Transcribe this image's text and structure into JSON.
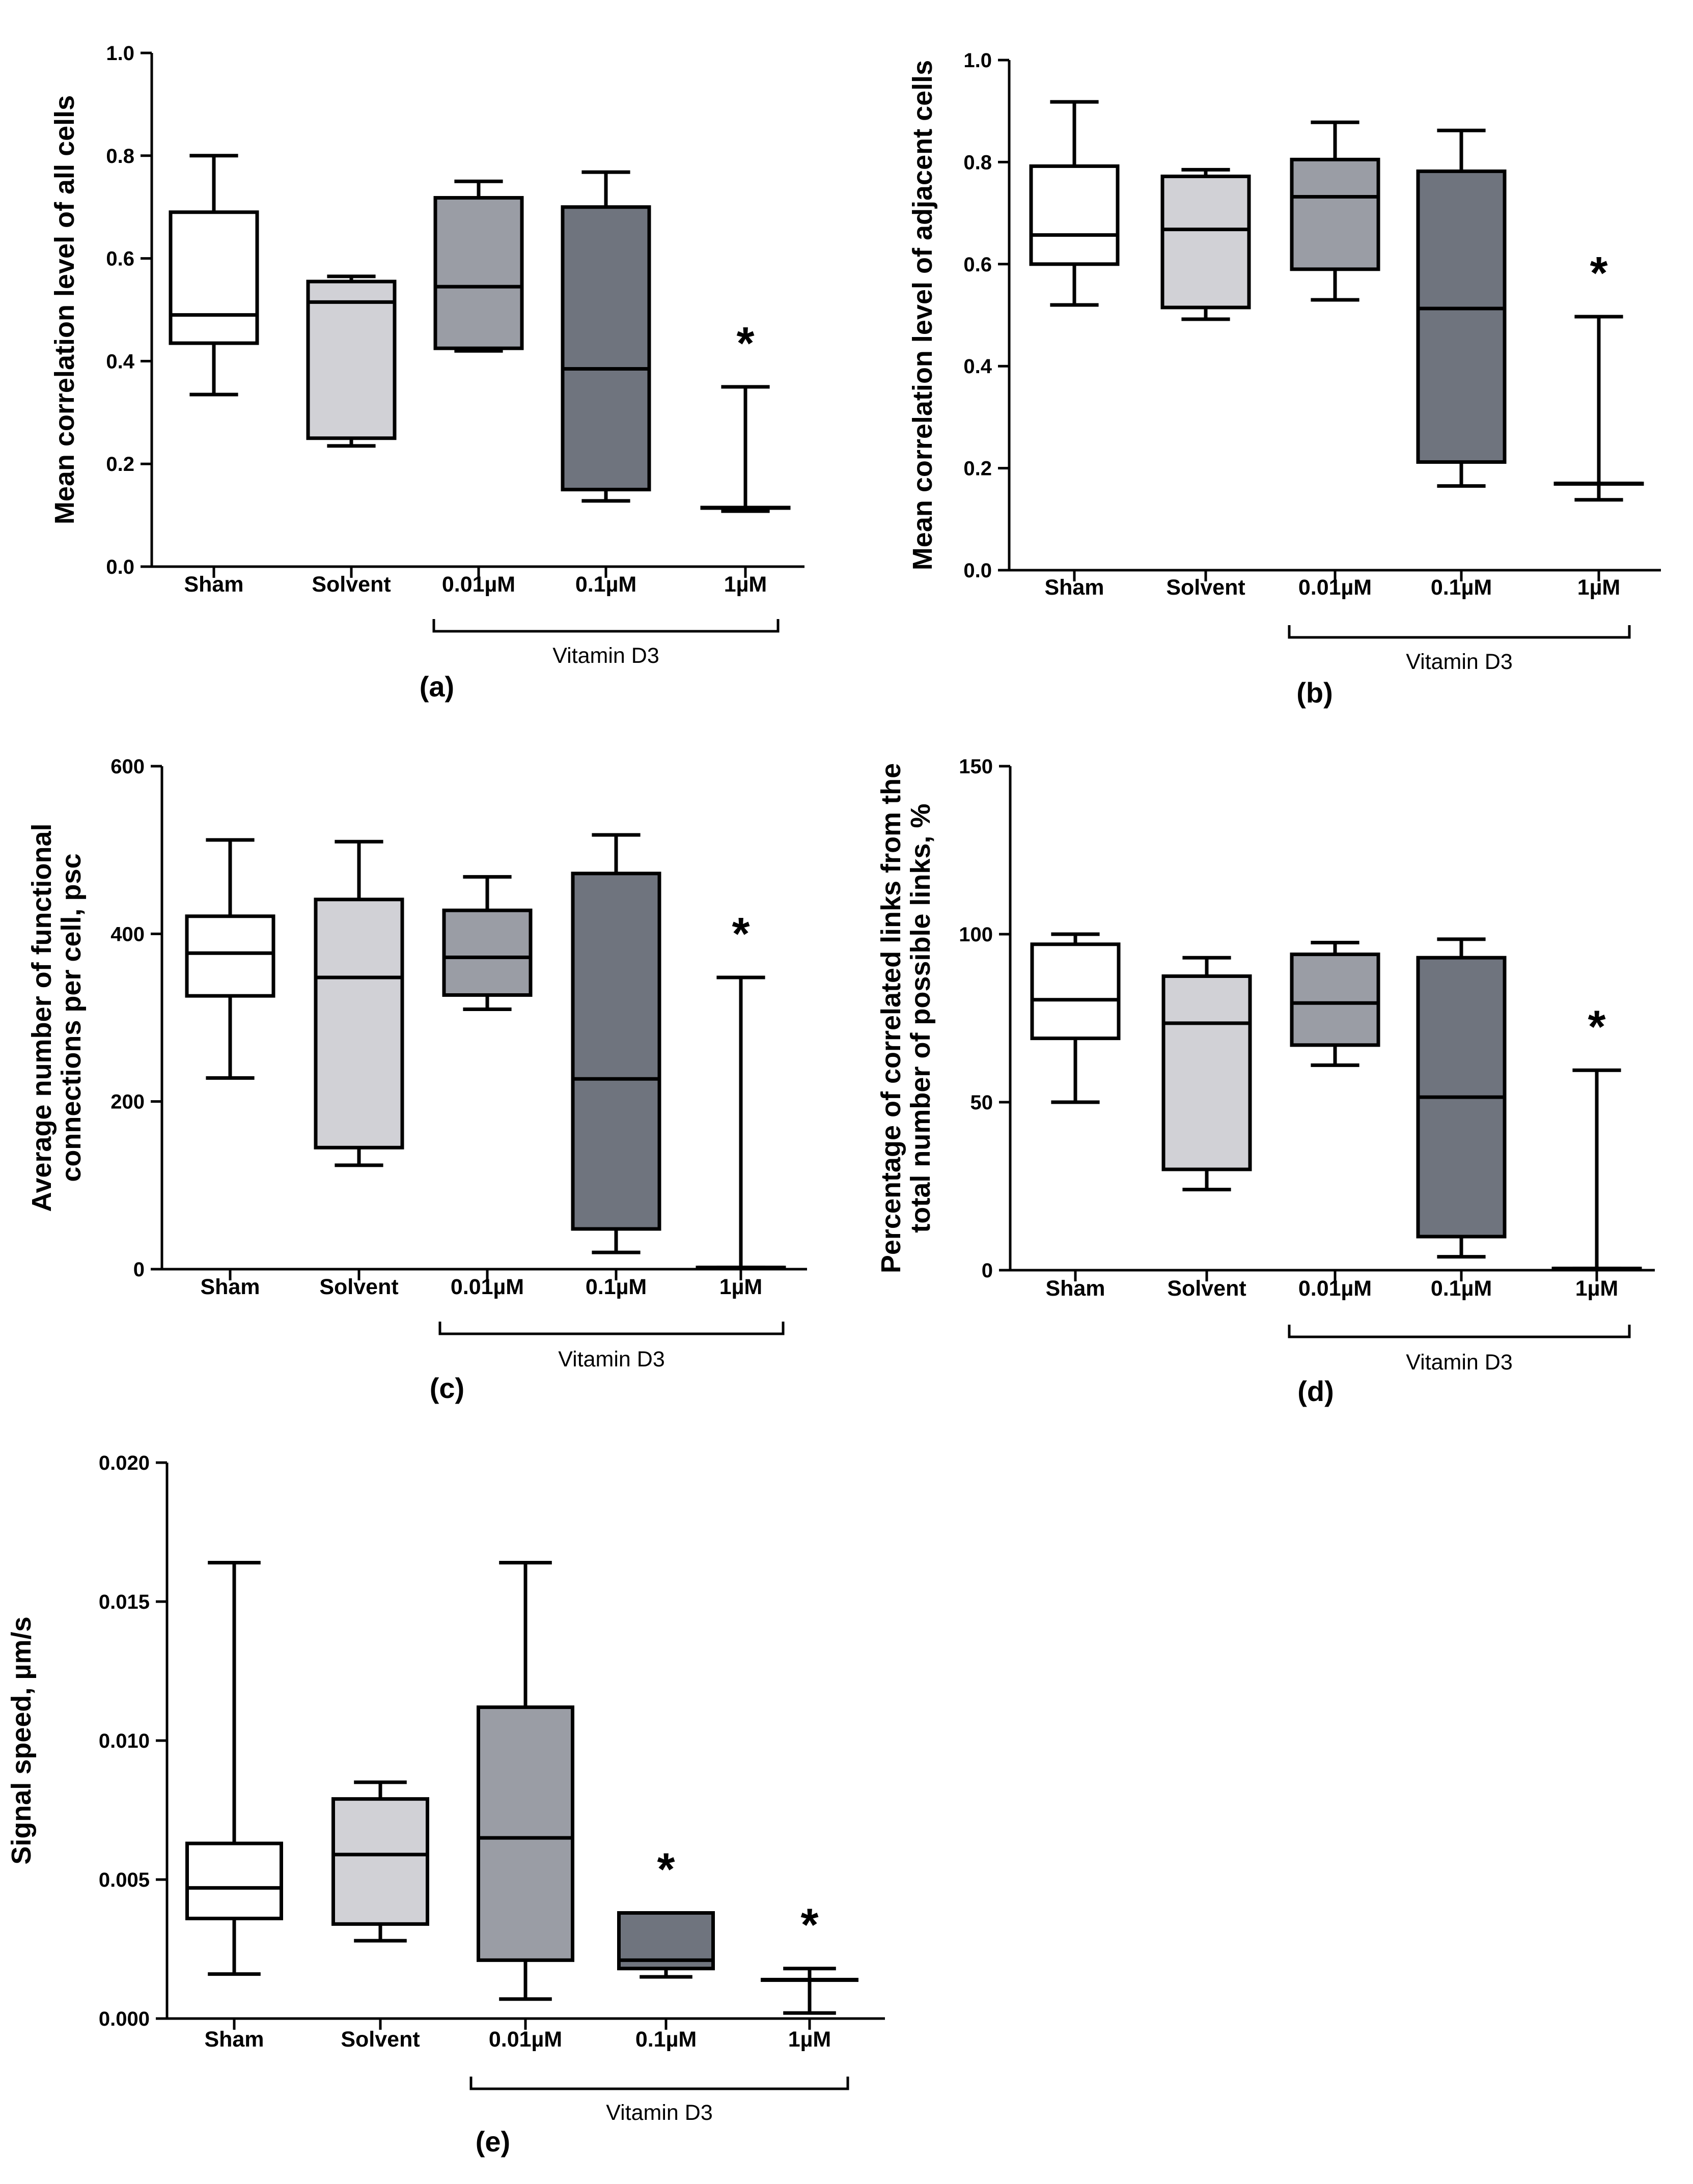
{
  "figure": {
    "bracket_label": "Vitamin D3",
    "significance_marker": "*",
    "group_fills": {
      "Sham": "#ffffff",
      "Solvent": "#d1d1d6",
      "0.01µM": "#9a9da5",
      "0.1µM": "#6f747e",
      "1µM": "#6f747e"
    }
  },
  "chart_data": [
    {
      "type": "box",
      "panel_label": "(a)",
      "ylabel": "Mean correlation level of all cells",
      "ylim": [
        0,
        1.0
      ],
      "yticks": [
        "0.0",
        "0.2",
        "0.4",
        "0.6",
        "0.8",
        "1.0"
      ],
      "categories": [
        "Sham",
        "Solvent",
        "0.01µM",
        "0.1µM",
        "1µM"
      ],
      "boxes": [
        {
          "min": 0.335,
          "q1": 0.435,
          "median": 0.49,
          "q3": 0.69,
          "max": 0.8
        },
        {
          "min": 0.235,
          "q1": 0.25,
          "median": 0.515,
          "q3": 0.555,
          "max": 0.565
        },
        {
          "min": 0.42,
          "q1": 0.425,
          "median": 0.545,
          "q3": 0.718,
          "max": 0.75
        },
        {
          "min": 0.128,
          "q1": 0.15,
          "median": 0.385,
          "q3": 0.7,
          "max": 0.768
        },
        {
          "min": 0.108,
          "q1": 0.115,
          "median": 0.115,
          "q3": 0.115,
          "max": 0.35
        }
      ],
      "significant": [
        false,
        false,
        false,
        false,
        true
      ],
      "bracket_groups": [
        "0.01µM",
        "1µM"
      ]
    },
    {
      "type": "box",
      "panel_label": "(b)",
      "ylabel": "Mean correlation level of adjacent cells",
      "ylim": [
        0,
        1.0
      ],
      "yticks": [
        "0.0",
        "0.2",
        "0.4",
        "0.6",
        "0.8",
        "1.0"
      ],
      "categories": [
        "Sham",
        "Solvent",
        "0.01µM",
        "0.1µM",
        "1µM"
      ],
      "boxes": [
        {
          "min": 0.52,
          "q1": 0.6,
          "median": 0.657,
          "q3": 0.792,
          "max": 0.918
        },
        {
          "min": 0.492,
          "q1": 0.515,
          "median": 0.668,
          "q3": 0.772,
          "max": 0.785
        },
        {
          "min": 0.53,
          "q1": 0.59,
          "median": 0.732,
          "q3": 0.805,
          "max": 0.878
        },
        {
          "min": 0.165,
          "q1": 0.212,
          "median": 0.513,
          "q3": 0.782,
          "max": 0.862
        },
        {
          "min": 0.138,
          "q1": 0.17,
          "median": 0.17,
          "q3": 0.17,
          "max": 0.497
        }
      ],
      "significant": [
        false,
        false,
        false,
        false,
        true
      ],
      "bracket_groups": [
        "0.01µM",
        "1µM"
      ]
    },
    {
      "type": "box",
      "panel_label": "(c)",
      "ylabel_lines": [
        "Average number of functional",
        "connections per cell, psc"
      ],
      "ylim": [
        0,
        600
      ],
      "yticks": [
        "0",
        "200",
        "400",
        "600"
      ],
      "categories": [
        "Sham",
        "Solvent",
        "0.01µM",
        "0.1µM",
        "1µM"
      ],
      "boxes": [
        {
          "min": 228,
          "q1": 326,
          "median": 377,
          "q3": 421,
          "max": 512
        },
        {
          "min": 124,
          "q1": 145,
          "median": 348,
          "q3": 441,
          "max": 510
        },
        {
          "min": 310,
          "q1": 327,
          "median": 372,
          "q3": 428,
          "max": 468
        },
        {
          "min": 20,
          "q1": 48,
          "median": 227,
          "q3": 472,
          "max": 518
        },
        {
          "min": 2,
          "q1": 2,
          "median": 2,
          "q3": 2,
          "max": 348
        }
      ],
      "significant": [
        false,
        false,
        false,
        false,
        true
      ],
      "bracket_groups": [
        "0.01µM",
        "1µM"
      ]
    },
    {
      "type": "box",
      "panel_label": "(d)",
      "ylabel_lines": [
        "Percentage of correlated links from the",
        "total number of possible links, %"
      ],
      "ylim": [
        0,
        150
      ],
      "yticks": [
        "0",
        "50",
        "100",
        "150"
      ],
      "categories": [
        "Sham",
        "Solvent",
        "0.01µM",
        "0.1µM",
        "1µM"
      ],
      "boxes": [
        {
          "min": 50,
          "q1": 69,
          "median": 80.5,
          "q3": 97,
          "max": 100
        },
        {
          "min": 24,
          "q1": 30,
          "median": 73.5,
          "q3": 87.5,
          "max": 93
        },
        {
          "min": 61,
          "q1": 67,
          "median": 79.5,
          "q3": 94,
          "max": 97.5
        },
        {
          "min": 4,
          "q1": 10,
          "median": 51.5,
          "q3": 93,
          "max": 98.5
        },
        {
          "min": 0.5,
          "q1": 0.5,
          "median": 0.5,
          "q3": 0.5,
          "max": 59.5
        }
      ],
      "significant": [
        false,
        false,
        false,
        false,
        true
      ],
      "bracket_groups": [
        "0.01µM",
        "1µM"
      ]
    },
    {
      "type": "box",
      "panel_label": "(e)",
      "ylabel": "Signal speed, µm/s",
      "ylim": [
        0,
        0.02
      ],
      "yticks": [
        "0.000",
        "0.005",
        "0.010",
        "0.015",
        "0.020"
      ],
      "categories": [
        "Sham",
        "Solvent",
        "0.01µM",
        "0.1µM",
        "1µM"
      ],
      "boxes": [
        {
          "min": 0.0016,
          "q1": 0.0036,
          "median": 0.0047,
          "q3": 0.0063,
          "max": 0.0164
        },
        {
          "min": 0.0028,
          "q1": 0.0034,
          "median": 0.0059,
          "q3": 0.0079,
          "max": 0.0085
        },
        {
          "min": 0.0007,
          "q1": 0.0021,
          "median": 0.0065,
          "q3": 0.0112,
          "max": 0.0164
        },
        {
          "min": 0.0015,
          "q1": 0.0018,
          "median": 0.0021,
          "q3": 0.0038,
          "max": 0.0038
        },
        {
          "min": 0.0002,
          "q1": 0.0014,
          "median": 0.0014,
          "q3": 0.0014,
          "max": 0.0018
        }
      ],
      "significant": [
        false,
        false,
        false,
        true,
        true
      ],
      "bracket_groups": [
        "0.01µM",
        "1µM"
      ]
    }
  ]
}
